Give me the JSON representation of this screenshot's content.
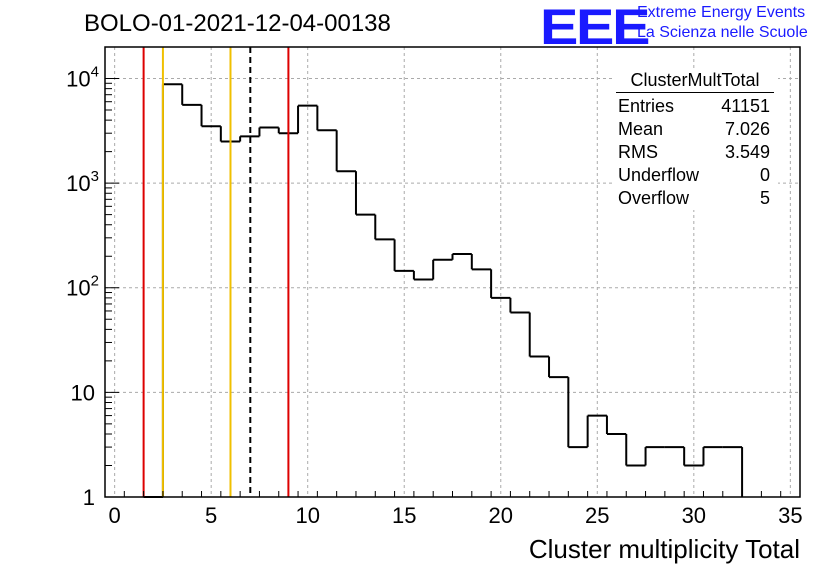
{
  "header": {
    "run_title": "BOLO-01-2021-12-04-00138"
  },
  "logo": {
    "mark": "EEE",
    "line1": "Extreme Energy Events",
    "line2": "La Scienza nelle Scuole",
    "color": "#1a1aff"
  },
  "stats_box": {
    "title": "ClusterMultTotal",
    "rows": [
      {
        "label": "Entries",
        "value": "41151"
      },
      {
        "label": "Mean",
        "value": "7.026"
      },
      {
        "label": "RMS",
        "value": "3.549"
      },
      {
        "label": "Underflow",
        "value": "0"
      },
      {
        "label": "Overflow",
        "value": "5"
      }
    ]
  },
  "chart_data": {
    "type": "histogram",
    "title": "BOLO-01-2021-12-04-00138",
    "xlabel": "Cluster multiplicity Total",
    "ylabel": "",
    "xlim": [
      -0.5,
      35.5
    ],
    "ylim": [
      1,
      20000
    ],
    "y_scale": "log",
    "grid": true,
    "x_ticks": [
      0,
      5,
      10,
      15,
      20,
      25,
      30,
      35
    ],
    "y_ticks": [
      {
        "value": 1,
        "label": "1"
      },
      {
        "value": 10,
        "label": "10"
      },
      {
        "value": 100,
        "label": "10^2"
      },
      {
        "value": 1000,
        "label": "10^3"
      },
      {
        "value": 10000,
        "label": "10^4"
      }
    ],
    "bin_width": 1,
    "bins": [
      {
        "low": 1.5,
        "count": 1
      },
      {
        "low": 2.5,
        "count": 8800
      },
      {
        "low": 3.5,
        "count": 5600
      },
      {
        "low": 4.5,
        "count": 3500
      },
      {
        "low": 5.5,
        "count": 2500
      },
      {
        "low": 6.5,
        "count": 2800
      },
      {
        "low": 7.5,
        "count": 3400
      },
      {
        "low": 8.5,
        "count": 3000
      },
      {
        "low": 9.5,
        "count": 5500
      },
      {
        "low": 10.5,
        "count": 3200
      },
      {
        "low": 11.5,
        "count": 1300
      },
      {
        "low": 12.5,
        "count": 500
      },
      {
        "low": 13.5,
        "count": 290
      },
      {
        "low": 14.5,
        "count": 145
      },
      {
        "low": 15.5,
        "count": 120
      },
      {
        "low": 16.5,
        "count": 185
      },
      {
        "low": 17.5,
        "count": 210
      },
      {
        "low": 18.5,
        "count": 150
      },
      {
        "low": 19.5,
        "count": 80
      },
      {
        "low": 20.5,
        "count": 58
      },
      {
        "low": 21.5,
        "count": 22
      },
      {
        "low": 22.5,
        "count": 14
      },
      {
        "low": 23.5,
        "count": 3
      },
      {
        "low": 24.5,
        "count": 6
      },
      {
        "low": 25.5,
        "count": 4
      },
      {
        "low": 26.5,
        "count": 2
      },
      {
        "low": 27.5,
        "count": 3
      },
      {
        "low": 28.5,
        "count": 3
      },
      {
        "low": 29.5,
        "count": 2
      },
      {
        "low": 30.5,
        "count": 3
      },
      {
        "low": 31.5,
        "count": 3
      }
    ],
    "hist_end": 32.5,
    "vertical_lines": [
      {
        "x": 1.5,
        "color": "#dd0000",
        "style": "solid"
      },
      {
        "x": 2.5,
        "color": "#f0c000",
        "style": "solid"
      },
      {
        "x": 6.0,
        "color": "#f0c000",
        "style": "solid"
      },
      {
        "x": 7.026,
        "color": "#000000",
        "style": "dashed"
      },
      {
        "x": 9.0,
        "color": "#dd0000",
        "style": "solid"
      }
    ]
  }
}
